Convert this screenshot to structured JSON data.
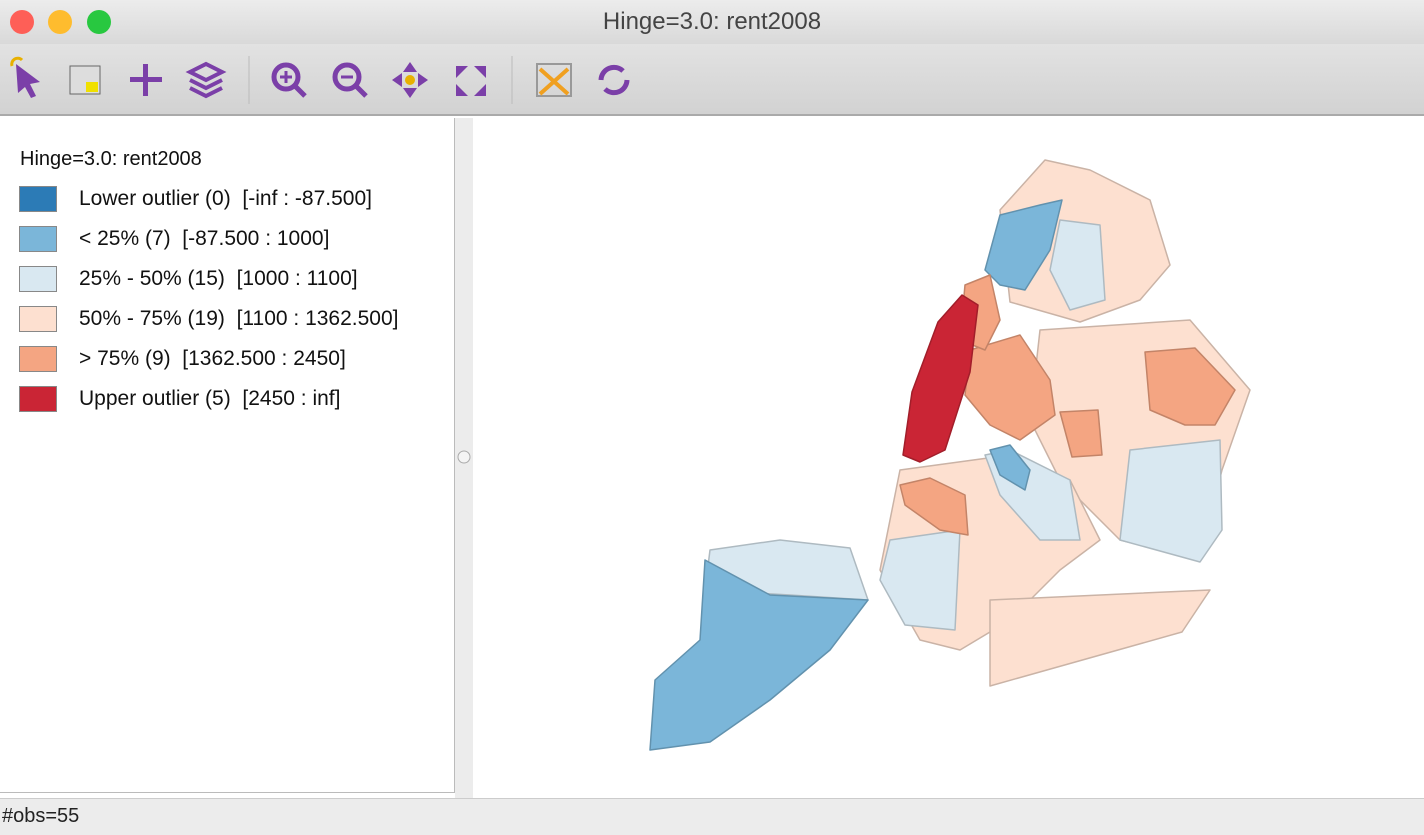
{
  "window": {
    "title": "Hinge=3.0: rent2008"
  },
  "legend": {
    "title": "Hinge=3.0: rent2008",
    "items": [
      {
        "label": "Lower outlier (0)  [-inf : -87.500]",
        "color": "#2c7bb6"
      },
      {
        "label": "< 25% (7)  [-87.500 : 1000]",
        "color": "#7bb6d9"
      },
      {
        "label": "25% - 50% (15)  [1000 : 1100]",
        "color": "#d9e8f1"
      },
      {
        "label": "50% - 75% (19)  [1100 : 1362.500]",
        "color": "#fde0d0"
      },
      {
        "label": "> 75% (9)  [1362.500 : 2450]",
        "color": "#f4a582"
      },
      {
        "label": "Upper outlier (5)  [2450 : inf]",
        "color": "#ca2535"
      }
    ]
  },
  "status": "#obs=55"
}
